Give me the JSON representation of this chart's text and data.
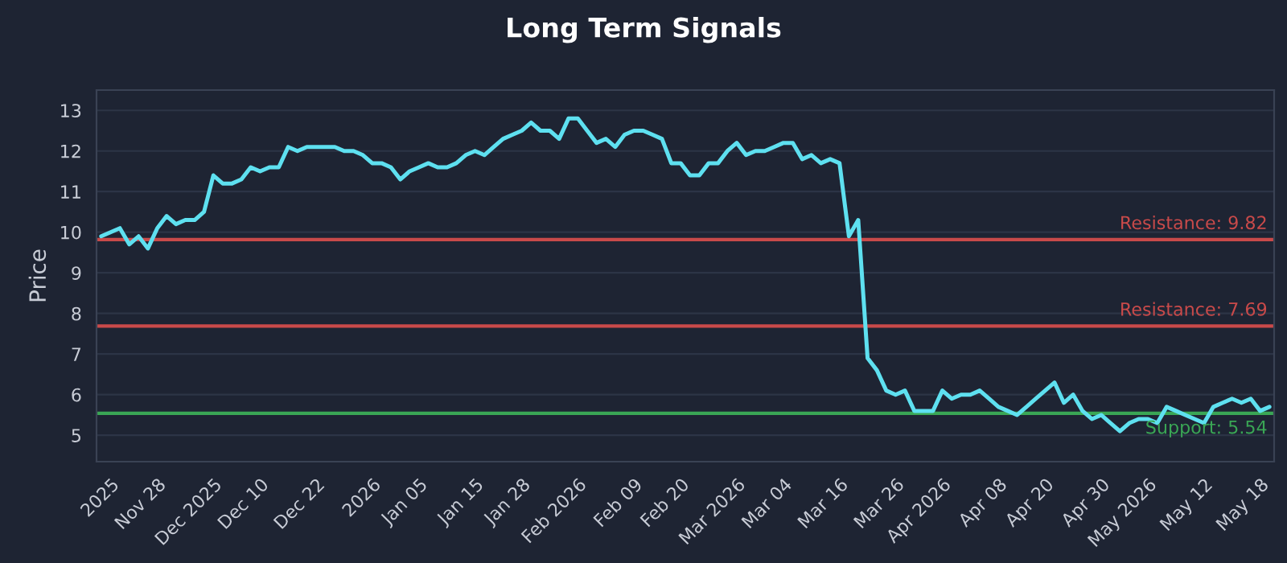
{
  "chart_data": {
    "type": "line",
    "title": "Long Term Signals",
    "ylabel": "Price",
    "categories": [
      null,
      "2025",
      null,
      null,
      null,
      null,
      "Nov 28",
      null,
      null,
      null,
      null,
      null,
      "Dec 2025",
      null,
      null,
      null,
      null,
      "Dec 10",
      null,
      null,
      null,
      null,
      null,
      "Dec 22",
      null,
      null,
      null,
      null,
      null,
      "2026",
      null,
      null,
      null,
      null,
      "Jan 05",
      null,
      null,
      null,
      null,
      null,
      "Jan 15",
      null,
      null,
      null,
      null,
      "Jan 28",
      null,
      null,
      null,
      null,
      null,
      "Feb 2026",
      null,
      null,
      null,
      null,
      null,
      "Feb 09",
      null,
      null,
      null,
      null,
      "Feb 20",
      null,
      null,
      null,
      null,
      null,
      "Mar 2026",
      null,
      null,
      null,
      null,
      "Mar 04",
      null,
      null,
      null,
      null,
      null,
      "Mar 16",
      null,
      null,
      null,
      null,
      null,
      "Mar 26",
      null,
      null,
      null,
      null,
      "Apr 2026",
      null,
      null,
      null,
      null,
      null,
      "Apr 08",
      null,
      null,
      null,
      null,
      "Apr 20",
      null,
      null,
      null,
      null,
      null,
      "Apr 30",
      null,
      null,
      null,
      null,
      "May 2026",
      null,
      null,
      null,
      null,
      null,
      "May 12",
      null,
      null,
      null,
      null,
      null,
      "May 18",
      null
    ],
    "series": [
      {
        "color": "#5ee0f0",
        "values": [
          9.9,
          10.0,
          10.1,
          9.7,
          9.9,
          9.6,
          10.1,
          10.4,
          10.2,
          10.3,
          10.3,
          10.5,
          11.4,
          11.2,
          11.2,
          11.3,
          11.6,
          11.5,
          11.6,
          11.6,
          12.1,
          12.0,
          12.1,
          12.1,
          12.1,
          12.1,
          12.0,
          12.0,
          11.9,
          11.7,
          11.7,
          11.6,
          11.3,
          11.5,
          11.6,
          11.7,
          11.6,
          11.6,
          11.7,
          11.9,
          12.0,
          11.9,
          12.1,
          12.3,
          12.4,
          12.5,
          12.7,
          12.5,
          12.5,
          12.3,
          12.8,
          12.8,
          12.5,
          12.2,
          12.3,
          12.1,
          12.4,
          12.5,
          12.5,
          12.4,
          12.3,
          11.7,
          11.7,
          11.4,
          11.4,
          11.7,
          11.7,
          12.0,
          12.2,
          11.9,
          12.0,
          12.0,
          12.1,
          12.2,
          12.2,
          11.8,
          11.9,
          11.7,
          11.8,
          11.7,
          9.9,
          10.3,
          6.9,
          6.6,
          6.1,
          6.0,
          6.1,
          5.6,
          5.6,
          5.6,
          6.1,
          5.9,
          6.0,
          6.0,
          6.1,
          5.9,
          5.7,
          5.6,
          5.5,
          5.7,
          5.9,
          6.1,
          6.3,
          5.8,
          6.0,
          5.6,
          5.4,
          5.5,
          5.3,
          5.1,
          5.3,
          5.4,
          5.4,
          5.3,
          5.7,
          5.6,
          5.5,
          5.4,
          5.3,
          5.7,
          5.8,
          5.9,
          5.8,
          5.9,
          5.6,
          5.7
        ]
      }
    ],
    "ylim": [
      4.35,
      13.5
    ],
    "yticks": [
      5,
      6,
      7,
      8,
      9,
      10,
      11,
      12,
      13
    ],
    "grid": "y",
    "legend": false,
    "marker": "none",
    "line_style": "solid",
    "ref_lines": [
      {
        "axis": "y",
        "value": 9.82,
        "label": "Resistance: 9.82",
        "color": "#c94a4a"
      },
      {
        "axis": "y",
        "value": 7.69,
        "label": "Resistance: 7.69",
        "color": "#c94a4a"
      },
      {
        "axis": "y",
        "value": 5.54,
        "label": "Support: 5.54",
        "color": "#3aa655"
      }
    ]
  }
}
